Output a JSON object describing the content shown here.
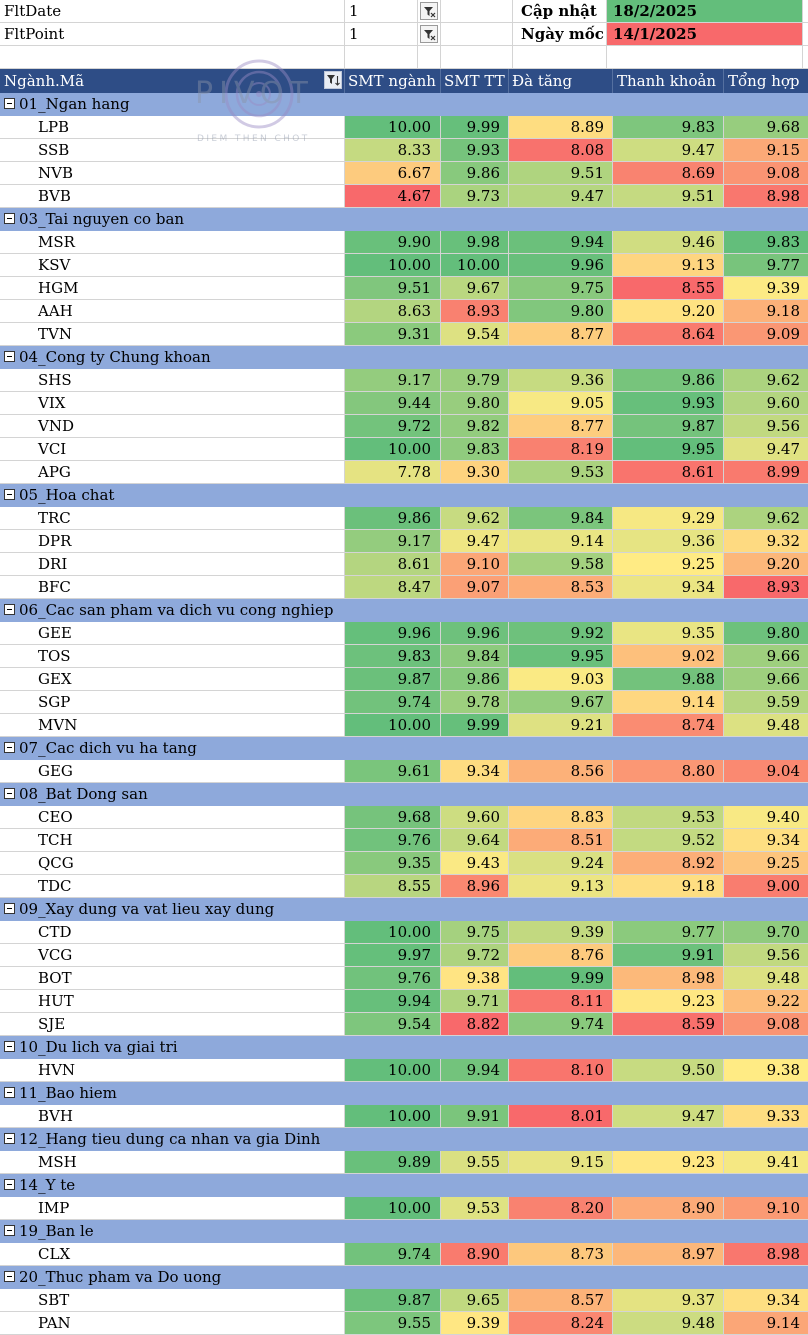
{
  "filters": {
    "fltdate_label": "FltDate",
    "fltdate_value": "1",
    "fltpoint_label": "FltPoint",
    "fltpoint_value": "1",
    "update_label": "Cập nhật",
    "update_date": "18/2/2025",
    "update_color": "#63be7b",
    "base_label": "Ngày mốc",
    "base_date": "14/1/2025",
    "base_color": "#f8696b"
  },
  "logo": {
    "text": "PIVOT",
    "tagline": "DIEM THEN CHOT"
  },
  "header": {
    "name": "Ngành.Mã",
    "col1": "SMT ngành",
    "col2": "SMT TT",
    "col3": "Đà tăng",
    "col4": "Thanh khoản",
    "col5": "Tổng hợp"
  },
  "sections": [
    {
      "title": "01_Ngan hang",
      "rows": [
        {
          "code": "LPB",
          "v": [
            "10.00",
            "9.99",
            "8.89",
            "9.83",
            "9.68"
          ]
        },
        {
          "code": "SSB",
          "v": [
            "8.33",
            "9.93",
            "8.08",
            "9.47",
            "9.15"
          ]
        },
        {
          "code": "NVB",
          "v": [
            "6.67",
            "9.86",
            "9.51",
            "8.69",
            "9.08"
          ]
        },
        {
          "code": "BVB",
          "v": [
            "4.67",
            "9.73",
            "9.47",
            "9.51",
            "8.98"
          ]
        }
      ]
    },
    {
      "title": "03_Tai nguyen co ban",
      "rows": [
        {
          "code": "MSR",
          "v": [
            "9.90",
            "9.98",
            "9.94",
            "9.46",
            "9.83"
          ]
        },
        {
          "code": "KSV",
          "v": [
            "10.00",
            "10.00",
            "9.96",
            "9.13",
            "9.77"
          ]
        },
        {
          "code": "HGM",
          "v": [
            "9.51",
            "9.67",
            "9.75",
            "8.55",
            "9.39"
          ]
        },
        {
          "code": "AAH",
          "v": [
            "8.63",
            "8.93",
            "9.80",
            "9.20",
            "9.18"
          ]
        },
        {
          "code": "TVN",
          "v": [
            "9.31",
            "9.54",
            "8.77",
            "8.64",
            "9.09"
          ]
        }
      ]
    },
    {
      "title": "04_Cong ty Chung khoan",
      "rows": [
        {
          "code": "SHS",
          "v": [
            "9.17",
            "9.79",
            "9.36",
            "9.86",
            "9.62"
          ]
        },
        {
          "code": "VIX",
          "v": [
            "9.44",
            "9.80",
            "9.05",
            "9.93",
            "9.60"
          ]
        },
        {
          "code": "VND",
          "v": [
            "9.72",
            "9.82",
            "8.77",
            "9.87",
            "9.56"
          ]
        },
        {
          "code": "VCI",
          "v": [
            "10.00",
            "9.83",
            "8.19",
            "9.95",
            "9.47"
          ]
        },
        {
          "code": "APG",
          "v": [
            "7.78",
            "9.30",
            "9.53",
            "8.61",
            "8.99"
          ]
        }
      ]
    },
    {
      "title": "05_Hoa chat",
      "rows": [
        {
          "code": "TRC",
          "v": [
            "9.86",
            "9.62",
            "9.84",
            "9.29",
            "9.62"
          ]
        },
        {
          "code": "DPR",
          "v": [
            "9.17",
            "9.47",
            "9.14",
            "9.36",
            "9.32"
          ]
        },
        {
          "code": "DRI",
          "v": [
            "8.61",
            "9.10",
            "9.58",
            "9.25",
            "9.20"
          ]
        },
        {
          "code": "BFC",
          "v": [
            "8.47",
            "9.07",
            "8.53",
            "9.34",
            "8.93"
          ]
        }
      ]
    },
    {
      "title": "06_Cac san pham va dich vu cong nghiep",
      "rows": [
        {
          "code": "GEE",
          "v": [
            "9.96",
            "9.96",
            "9.92",
            "9.35",
            "9.80"
          ]
        },
        {
          "code": "TOS",
          "v": [
            "9.83",
            "9.84",
            "9.95",
            "9.02",
            "9.66"
          ]
        },
        {
          "code": "GEX",
          "v": [
            "9.87",
            "9.86",
            "9.03",
            "9.88",
            "9.66"
          ]
        },
        {
          "code": "SGP",
          "v": [
            "9.74",
            "9.78",
            "9.67",
            "9.14",
            "9.59"
          ]
        },
        {
          "code": "MVN",
          "v": [
            "10.00",
            "9.99",
            "9.21",
            "8.74",
            "9.48"
          ]
        }
      ]
    },
    {
      "title": "07_Cac dich vu ha tang",
      "rows": [
        {
          "code": "GEG",
          "v": [
            "9.61",
            "9.34",
            "8.56",
            "8.80",
            "9.04"
          ]
        }
      ]
    },
    {
      "title": "08_Bat Dong san",
      "rows": [
        {
          "code": "CEO",
          "v": [
            "9.68",
            "9.60",
            "8.83",
            "9.53",
            "9.40"
          ]
        },
        {
          "code": "TCH",
          "v": [
            "9.76",
            "9.64",
            "8.51",
            "9.52",
            "9.34"
          ]
        },
        {
          "code": "QCG",
          "v": [
            "9.35",
            "9.43",
            "9.24",
            "8.92",
            "9.25"
          ]
        },
        {
          "code": "TDC",
          "v": [
            "8.55",
            "8.96",
            "9.13",
            "9.18",
            "9.00"
          ]
        }
      ]
    },
    {
      "title": "09_Xay dung va vat lieu xay dung",
      "rows": [
        {
          "code": "CTD",
          "v": [
            "10.00",
            "9.75",
            "9.39",
            "9.77",
            "9.70"
          ]
        },
        {
          "code": "VCG",
          "v": [
            "9.97",
            "9.72",
            "8.76",
            "9.91",
            "9.56"
          ]
        },
        {
          "code": "BOT",
          "v": [
            "9.76",
            "9.38",
            "9.99",
            "8.98",
            "9.48"
          ]
        },
        {
          "code": "HUT",
          "v": [
            "9.94",
            "9.71",
            "8.11",
            "9.23",
            "9.22"
          ]
        },
        {
          "code": "SJE",
          "v": [
            "9.54",
            "8.82",
            "9.74",
            "8.59",
            "9.08"
          ]
        }
      ]
    },
    {
      "title": "10_Du lich va giai tri",
      "rows": [
        {
          "code": "HVN",
          "v": [
            "10.00",
            "9.94",
            "8.10",
            "9.50",
            "9.38"
          ]
        }
      ]
    },
    {
      "title": "11_Bao hiem",
      "rows": [
        {
          "code": "BVH",
          "v": [
            "10.00",
            "9.91",
            "8.01",
            "9.47",
            "9.33"
          ]
        }
      ]
    },
    {
      "title": "12_Hang tieu dung ca nhan va gia Dinh",
      "rows": [
        {
          "code": "MSH",
          "v": [
            "9.89",
            "9.55",
            "9.15",
            "9.23",
            "9.41"
          ]
        }
      ]
    },
    {
      "title": "14_Y te",
      "rows": [
        {
          "code": "IMP",
          "v": [
            "10.00",
            "9.53",
            "8.20",
            "8.90",
            "9.10"
          ]
        }
      ]
    },
    {
      "title": "19_Ban le",
      "rows": [
        {
          "code": "CLX",
          "v": [
            "9.74",
            "8.90",
            "8.73",
            "8.97",
            "8.98"
          ]
        }
      ]
    },
    {
      "title": "20_Thuc pham va Do uong",
      "rows": [
        {
          "code": "SBT",
          "v": [
            "9.87",
            "9.65",
            "8.57",
            "9.37",
            "9.34"
          ]
        },
        {
          "code": "PAN",
          "v": [
            "9.55",
            "9.39",
            "8.24",
            "9.48",
            "9.14"
          ]
        }
      ]
    }
  ],
  "color_scale": {
    "col1": [
      4.67,
      10.0
    ],
    "col2": [
      8.82,
      10.0
    ],
    "col3": [
      8.01,
      9.99
    ],
    "col4": [
      8.55,
      9.95
    ],
    "col5": [
      8.93,
      9.83
    ],
    "low": "#f8696b",
    "mid": "#ffeb84",
    "high": "#63be7b"
  }
}
